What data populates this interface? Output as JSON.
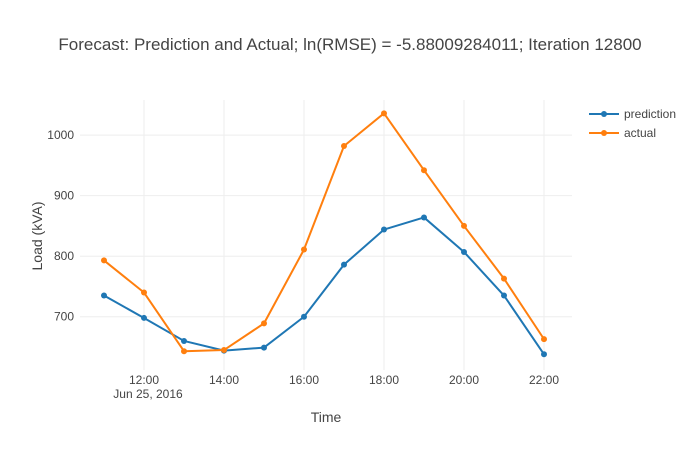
{
  "chart_data": {
    "type": "line",
    "title": "Forecast: Prediction and Actual; ln(RMSE) = -5.88009284011; Iteration 12800",
    "xlabel": "Time",
    "ylabel": "Load (kVA)",
    "x": [
      "11:00",
      "12:00",
      "13:00",
      "14:00",
      "15:00",
      "16:00",
      "17:00",
      "18:00",
      "19:00",
      "20:00",
      "21:00",
      "22:00"
    ],
    "x_tick_labels": [
      "12:00",
      "14:00",
      "16:00",
      "18:00",
      "20:00",
      "22:00"
    ],
    "x_date_label": "Jun 25, 2016",
    "y_ticks": [
      700,
      800,
      900,
      1000
    ],
    "y_tick_labels": [
      "700",
      "800",
      "900",
      "1000"
    ],
    "ylim": [
      612,
      1058
    ],
    "xlim_hours": [
      10.4,
      22.7
    ],
    "grid": true,
    "legend_position": "top-right",
    "series": [
      {
        "name": "prediction",
        "color": "#1f77b4",
        "values": [
          735,
          698,
          660,
          644,
          649,
          700,
          786,
          844,
          864,
          807,
          735,
          638
        ]
      },
      {
        "name": "actual",
        "color": "#ff7f0e",
        "values": [
          793,
          740,
          643,
          645,
          689,
          811,
          982,
          1036,
          942,
          850,
          763,
          663
        ]
      }
    ]
  }
}
